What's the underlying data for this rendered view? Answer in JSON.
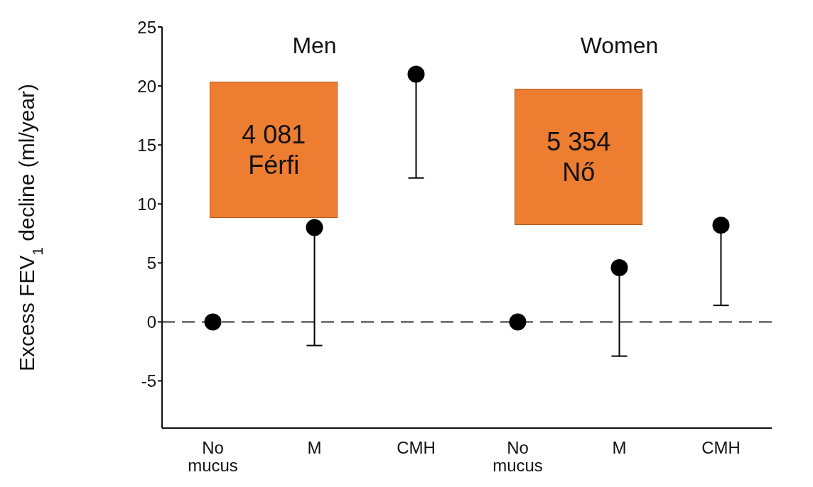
{
  "chart_data": {
    "type": "scatter",
    "ylabel": "Excess FEV$_{1}$ decline (ml/year)",
    "categories": [
      "No\nmucus",
      "M",
      "CMH",
      "No\nmucus",
      "M",
      "CMH"
    ],
    "values": [
      0,
      8,
      21,
      0,
      4.6,
      8.2
    ],
    "errors": [
      null,
      [
        -2,
        8
      ],
      [
        12.2,
        21
      ],
      null,
      [
        -2.9,
        4.6
      ],
      [
        1.4,
        8.2
      ]
    ],
    "color": "#000000",
    "marker": "circle",
    "ylim": [
      -9,
      25
    ],
    "yticks": [
      -5,
      0,
      5,
      10,
      15,
      20,
      25
    ],
    "ref_lines": [
      {
        "axis": "y",
        "value": 0,
        "line_style": "dashed"
      }
    ],
    "annotations": [
      "Men",
      "Women",
      "4 081\nFérfi",
      "5 354\nNő"
    ]
  }
}
